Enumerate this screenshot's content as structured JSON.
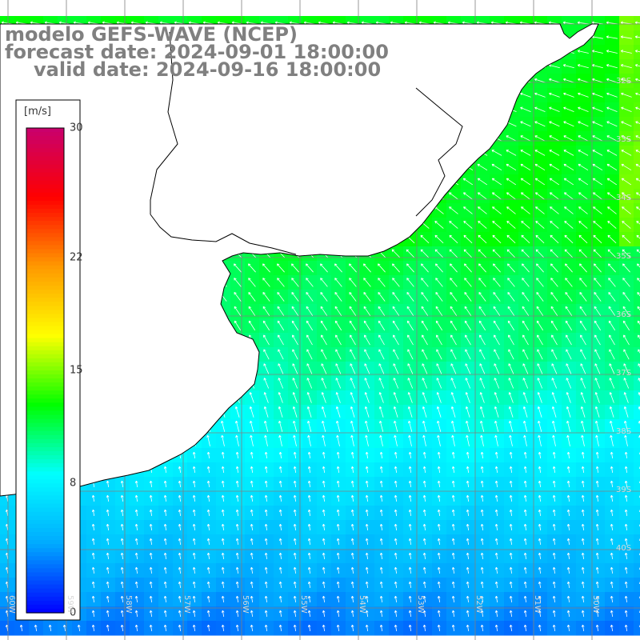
{
  "titles": {
    "model": "modelo GEFS-WAVE (NCEP)",
    "forecast": "forecast date: 2024-09-01 18:00:00",
    "valid": "valid date: 2024-09-16 18:00:00"
  },
  "colorbar": {
    "unit": "[m/s]",
    "min": 0,
    "max": 30,
    "ticks": [
      "30",
      "22",
      "15",
      "8",
      "0"
    ],
    "tick_values": [
      30,
      22,
      15,
      8,
      0
    ],
    "colors": [
      "#0000ff",
      "#00aaff",
      "#00ffff",
      "#00ff00",
      "#ffff00",
      "#ff9900",
      "#ff0000",
      "#c8006e"
    ]
  },
  "map": {
    "grid_color": "#808080",
    "coast_color": "#000000",
    "land_color": "#ffffff",
    "arrow_color": "#ffffff",
    "lat_labels": [
      "32S",
      "33S",
      "34S",
      "35S",
      "36S",
      "37S",
      "38S",
      "39S",
      "40S"
    ],
    "lon_labels": [
      "60W",
      "59W",
      "58W",
      "57W",
      "56W",
      "55W",
      "54W",
      "53W",
      "52W",
      "51W",
      "50W"
    ]
  }
}
